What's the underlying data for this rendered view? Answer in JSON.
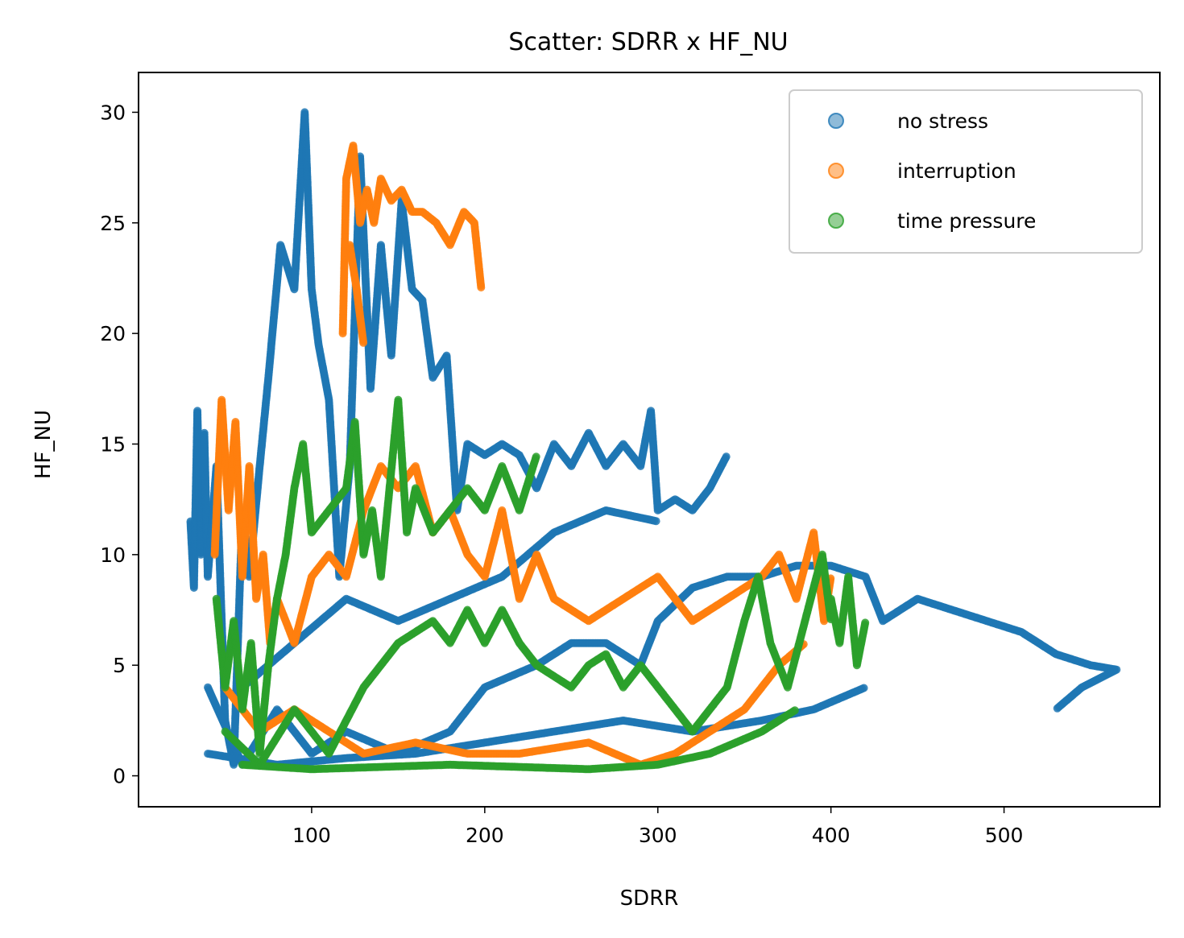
{
  "chart_data": {
    "type": "scatter",
    "title": "Scatter: SDRR x HF_NU",
    "xlabel": "SDRR",
    "ylabel": "HF_NU",
    "xlim": [
      0,
      590
    ],
    "ylim": [
      -1.4,
      31.8
    ],
    "xticks": [
      100,
      200,
      300,
      400,
      500
    ],
    "yticks": [
      0,
      5,
      10,
      15,
      20,
      25,
      30
    ],
    "grid": false,
    "legend_position": "top-right",
    "marker_alpha": 0.5,
    "series": [
      {
        "name": "no stress",
        "color": "#1f77b4",
        "paths": [
          [
            [
              30,
              11.5
            ],
            [
              32,
              8.5
            ],
            [
              34,
              16.5
            ],
            [
              36,
              10
            ],
            [
              38,
              15.5
            ],
            [
              40,
              9
            ],
            [
              45,
              14
            ],
            [
              50,
              2.5
            ],
            [
              55,
              0.5
            ],
            [
              60,
              12
            ],
            [
              64,
              9
            ],
            [
              70,
              14
            ],
            [
              75,
              18
            ],
            [
              82,
              24
            ],
            [
              90,
              22
            ],
            [
              96,
              30
            ],
            [
              100,
              22
            ],
            [
              104,
              19.5
            ],
            [
              110,
              17
            ],
            [
              116,
              9
            ],
            [
              122,
              14
            ],
            [
              128,
              28
            ],
            [
              134,
              17.5
            ],
            [
              140,
              24
            ],
            [
              146,
              19
            ],
            [
              152,
              26
            ],
            [
              158,
              22
            ],
            [
              164,
              21.5
            ],
            [
              170,
              18
            ],
            [
              178,
              19
            ],
            [
              184,
              12
            ],
            [
              190,
              15
            ],
            [
              200,
              14.5
            ],
            [
              210,
              15
            ],
            [
              220,
              14.5
            ],
            [
              230,
              13
            ],
            [
              240,
              15
            ],
            [
              250,
              14
            ],
            [
              260,
              15.5
            ],
            [
              270,
              14
            ],
            [
              280,
              15
            ],
            [
              290,
              14
            ],
            [
              296,
              16.5
            ],
            [
              300,
              12
            ],
            [
              310,
              12.5
            ],
            [
              320,
              12
            ],
            [
              330,
              13
            ],
            [
              340,
              14.5
            ]
          ],
          [
            [
              40,
              4
            ],
            [
              60,
              0.5
            ],
            [
              80,
              3
            ],
            [
              100,
              1
            ],
            [
              120,
              2
            ],
            [
              150,
              1
            ],
            [
              180,
              2
            ],
            [
              200,
              4
            ],
            [
              230,
              5
            ],
            [
              250,
              6
            ],
            [
              270,
              6
            ],
            [
              290,
              5
            ],
            [
              300,
              7
            ],
            [
              320,
              8.5
            ],
            [
              340,
              9
            ],
            [
              360,
              9
            ],
            [
              380,
              9.5
            ],
            [
              400,
              9.5
            ],
            [
              420,
              9
            ],
            [
              430,
              7
            ],
            [
              450,
              8
            ],
            [
              470,
              7.5
            ],
            [
              490,
              7
            ],
            [
              510,
              6.5
            ],
            [
              530,
              5.5
            ],
            [
              550,
              5
            ],
            [
              565,
              4.8
            ],
            [
              545,
              4
            ],
            [
              530,
              3
            ]
          ],
          [
            [
              60,
              4
            ],
            [
              90,
              6
            ],
            [
              120,
              8
            ],
            [
              150,
              7
            ],
            [
              180,
              8
            ],
            [
              210,
              9
            ],
            [
              240,
              11
            ],
            [
              270,
              12
            ],
            [
              300,
              11.5
            ]
          ],
          [
            [
              40,
              1
            ],
            [
              80,
              0.5
            ],
            [
              120,
              0.8
            ],
            [
              160,
              1
            ],
            [
              200,
              1.5
            ],
            [
              240,
              2
            ],
            [
              280,
              2.5
            ],
            [
              320,
              2
            ],
            [
              360,
              2.5
            ],
            [
              390,
              3
            ],
            [
              420,
              4
            ]
          ]
        ]
      },
      {
        "name": "interruption",
        "color": "#ff7f0e",
        "paths": [
          [
            [
              118,
              20
            ],
            [
              120,
              27
            ],
            [
              124,
              28.5
            ],
            [
              128,
              25
            ],
            [
              132,
              26.5
            ],
            [
              136,
              25
            ],
            [
              140,
              27
            ],
            [
              146,
              26
            ],
            [
              152,
              26.5
            ],
            [
              158,
              25.5
            ],
            [
              164,
              25.5
            ],
            [
              172,
              25
            ],
            [
              180,
              24
            ],
            [
              188,
              25.5
            ],
            [
              194,
              25
            ],
            [
              198,
              22
            ]
          ],
          [
            [
              122,
              24
            ],
            [
              126,
              22
            ],
            [
              130,
              19.5
            ]
          ],
          [
            [
              44,
              10
            ],
            [
              48,
              17
            ],
            [
              52,
              12
            ],
            [
              56,
              16
            ],
            [
              60,
              9
            ],
            [
              64,
              14
            ],
            [
              68,
              8
            ],
            [
              72,
              10
            ],
            [
              76,
              6
            ],
            [
              80,
              8
            ],
            [
              90,
              6
            ],
            [
              100,
              9
            ],
            [
              110,
              10
            ],
            [
              120,
              9
            ],
            [
              130,
              12
            ],
            [
              140,
              14
            ],
            [
              150,
              13
            ],
            [
              160,
              14
            ],
            [
              170,
              11
            ],
            [
              180,
              12
            ],
            [
              190,
              10
            ],
            [
              200,
              9
            ],
            [
              210,
              12
            ],
            [
              220,
              8
            ],
            [
              230,
              10
            ],
            [
              240,
              8
            ],
            [
              260,
              7
            ],
            [
              280,
              8
            ],
            [
              300,
              9
            ],
            [
              320,
              7
            ],
            [
              340,
              8
            ],
            [
              360,
              9
            ],
            [
              370,
              10
            ],
            [
              380,
              8
            ],
            [
              390,
              11
            ],
            [
              396,
              7
            ],
            [
              400,
              9
            ]
          ],
          [
            [
              50,
              4
            ],
            [
              70,
              2
            ],
            [
              90,
              3
            ],
            [
              110,
              2
            ],
            [
              130,
              1
            ],
            [
              160,
              1.5
            ],
            [
              190,
              1
            ],
            [
              220,
              1
            ],
            [
              260,
              1.5
            ],
            [
              290,
              0.5
            ],
            [
              310,
              1
            ],
            [
              330,
              2
            ],
            [
              350,
              3
            ],
            [
              370,
              5
            ],
            [
              385,
              6
            ]
          ]
        ]
      },
      {
        "name": "time pressure",
        "color": "#2ca02c",
        "paths": [
          [
            [
              45,
              8
            ],
            [
              50,
              4
            ],
            [
              55,
              7
            ],
            [
              60,
              3
            ],
            [
              65,
              6
            ],
            [
              70,
              1
            ],
            [
              75,
              5
            ],
            [
              80,
              8
            ],
            [
              85,
              10
            ],
            [
              90,
              13
            ],
            [
              95,
              15
            ],
            [
              100,
              11
            ],
            [
              110,
              12
            ],
            [
              120,
              13
            ],
            [
              125,
              16
            ],
            [
              130,
              10
            ],
            [
              135,
              12
            ],
            [
              140,
              9
            ],
            [
              145,
              13
            ],
            [
              150,
              17
            ],
            [
              155,
              11
            ],
            [
              160,
              13
            ],
            [
              170,
              11
            ],
            [
              180,
              12
            ],
            [
              190,
              13
            ],
            [
              200,
              12
            ],
            [
              210,
              14
            ],
            [
              220,
              12
            ],
            [
              230,
              14.5
            ]
          ],
          [
            [
              50,
              2
            ],
            [
              70,
              0.5
            ],
            [
              90,
              3
            ],
            [
              110,
              1
            ],
            [
              130,
              4
            ],
            [
              150,
              6
            ],
            [
              170,
              7
            ],
            [
              180,
              6
            ],
            [
              190,
              7.5
            ],
            [
              200,
              6
            ],
            [
              210,
              7.5
            ],
            [
              220,
              6
            ],
            [
              230,
              5
            ],
            [
              240,
              4.5
            ],
            [
              250,
              4
            ],
            [
              260,
              5
            ],
            [
              270,
              5.5
            ],
            [
              280,
              4
            ],
            [
              290,
              5
            ],
            [
              300,
              4
            ],
            [
              320,
              2
            ],
            [
              340,
              4
            ],
            [
              350,
              7
            ],
            [
              358,
              9
            ],
            [
              365,
              6
            ],
            [
              375,
              4
            ],
            [
              385,
              7
            ],
            [
              395,
              10
            ],
            [
              400,
              7
            ]
          ],
          [
            [
              60,
              0.5
            ],
            [
              100,
              0.3
            ],
            [
              140,
              0.4
            ],
            [
              180,
              0.5
            ],
            [
              220,
              0.4
            ],
            [
              260,
              0.3
            ],
            [
              300,
              0.5
            ],
            [
              330,
              1
            ],
            [
              360,
              2
            ],
            [
              380,
              3
            ]
          ],
          [
            [
              400,
              8
            ],
            [
              405,
              6
            ],
            [
              410,
              9
            ],
            [
              415,
              5
            ],
            [
              420,
              7
            ]
          ]
        ]
      }
    ]
  }
}
